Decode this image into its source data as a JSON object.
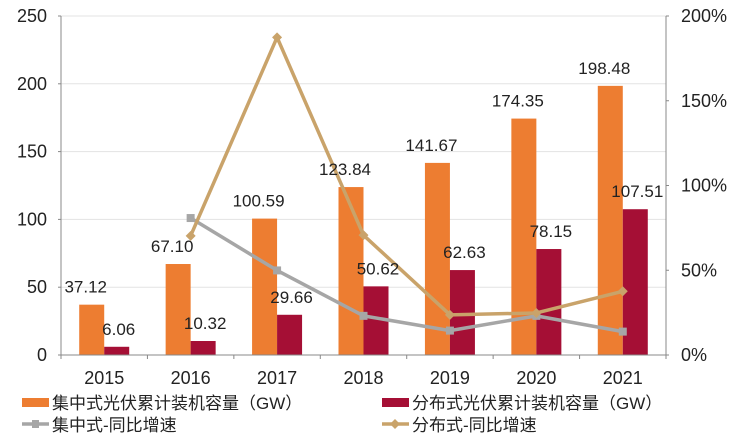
{
  "chart_data": {
    "type": "bar",
    "categories": [
      "2015",
      "2016",
      "2017",
      "2018",
      "2019",
      "2020",
      "2021"
    ],
    "bar_series": [
      {
        "name": "集中式光伏累计装机容量（GW）",
        "color": "#ED7D31",
        "values": [
          37.12,
          67.1,
          100.59,
          123.84,
          141.67,
          174.35,
          198.48
        ],
        "labels": [
          "37.12",
          "67.10",
          "100.59",
          "123.84",
          "141.67",
          "174.35",
          "198.48"
        ]
      },
      {
        "name": "分布式光伏累计装机容量（GW）",
        "color": "#A50F35",
        "values": [
          6.06,
          10.32,
          29.66,
          50.62,
          62.63,
          78.15,
          107.51
        ],
        "labels": [
          "6.06",
          "10.32",
          "29.66",
          "50.62",
          "62.63",
          "78.15",
          "107.51"
        ]
      }
    ],
    "line_series": [
      {
        "name": "集中式-同比增速",
        "color": "#A6A6A6",
        "marker": "square",
        "values": [
          null,
          80.8,
          49.9,
          23.1,
          14.4,
          23.1,
          13.8
        ]
      },
      {
        "name": "分布式-同比增速",
        "color": "#C9A36A",
        "marker": "diamond",
        "values": [
          null,
          70.3,
          187.4,
          70.7,
          23.7,
          24.8,
          37.6
        ]
      }
    ],
    "ylim_left": [
      0,
      250
    ],
    "yticks_left": [
      "0",
      "50",
      "100",
      "150",
      "200",
      "250"
    ],
    "ylim_right": [
      0,
      200
    ],
    "yticks_right": [
      "0%",
      "50%",
      "100%",
      "150%",
      "200%"
    ],
    "grid": true,
    "legend_placement": "bottom"
  }
}
